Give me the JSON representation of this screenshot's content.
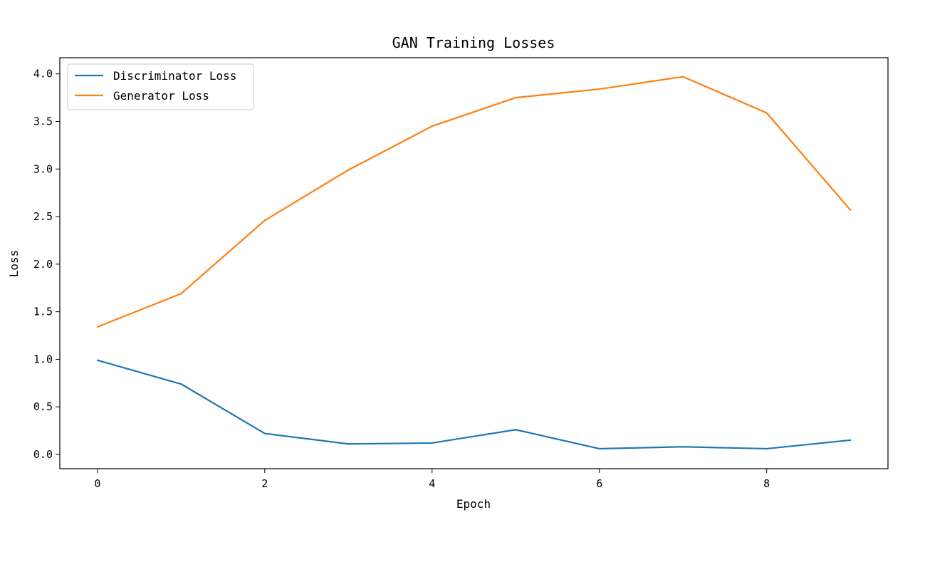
{
  "chart_data": {
    "type": "line",
    "title": "GAN Training Losses",
    "xlabel": "Epoch",
    "ylabel": "Loss",
    "x": [
      0,
      1,
      2,
      3,
      4,
      5,
      6,
      7,
      8,
      9
    ],
    "xticks": [
      0,
      2,
      4,
      6,
      8
    ],
    "xtick_labels": [
      "0",
      "2",
      "4",
      "6",
      "8"
    ],
    "xlim": [
      -0.45,
      9.45
    ],
    "yticks": [
      0.0,
      0.5,
      1.0,
      1.5,
      2.0,
      2.5,
      3.0,
      3.5,
      4.0
    ],
    "ytick_labels": [
      "0.0",
      "0.5",
      "1.0",
      "1.5",
      "2.0",
      "2.5",
      "3.0",
      "3.5",
      "4.0"
    ],
    "ylim": [
      -0.15,
      4.17
    ],
    "grid": false,
    "legend_position": "top-left",
    "series": [
      {
        "name": "Discriminator Loss",
        "color": "#1f77b4",
        "values": [
          0.99,
          0.74,
          0.22,
          0.11,
          0.12,
          0.26,
          0.06,
          0.08,
          0.06,
          0.15
        ]
      },
      {
        "name": "Generator Loss",
        "color": "#ff7f0e",
        "values": [
          1.34,
          1.69,
          2.46,
          2.99,
          3.45,
          3.75,
          3.84,
          3.97,
          3.59,
          2.57
        ]
      }
    ]
  }
}
